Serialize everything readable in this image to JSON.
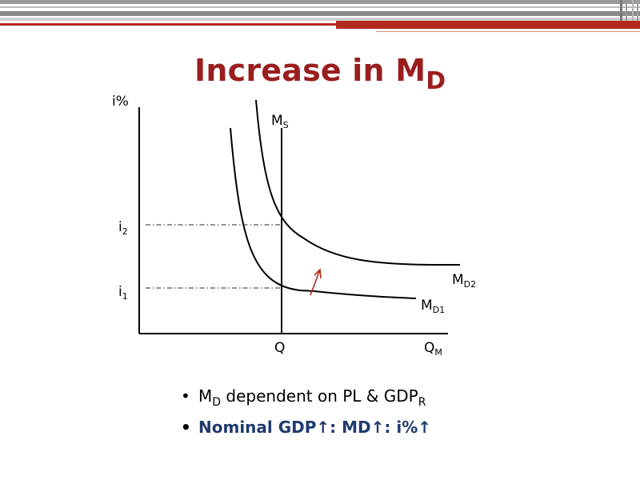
{
  "title": {
    "text": "Increase in M",
    "sub": "D"
  },
  "axis": {
    "y_label": "i%",
    "x_label_main": "Q",
    "x_label_sub": "M"
  },
  "labels": {
    "ms_main": "M",
    "ms_sub": "S",
    "i2_main": "i",
    "i2_sub": "2",
    "i1_main": "i",
    "i1_sub": "1",
    "q": "Q",
    "md1_main": "M",
    "md1_sub": "D1",
    "md2_main": "M",
    "md2_sub": "D2"
  },
  "bullets": {
    "b1_a": "M",
    "b1_a_sub": "D",
    "b1_b": " dependent on PL & GDP",
    "b1_b_sub": "R",
    "b2": "Nominal GDP↑: MD↑: i%↑"
  },
  "colors": {
    "title": "#9a1e1e",
    "bullet2": "#1f3a6e",
    "topbar_dark": "#b22a1f",
    "topbar_gray": "#8f8f8f"
  }
}
